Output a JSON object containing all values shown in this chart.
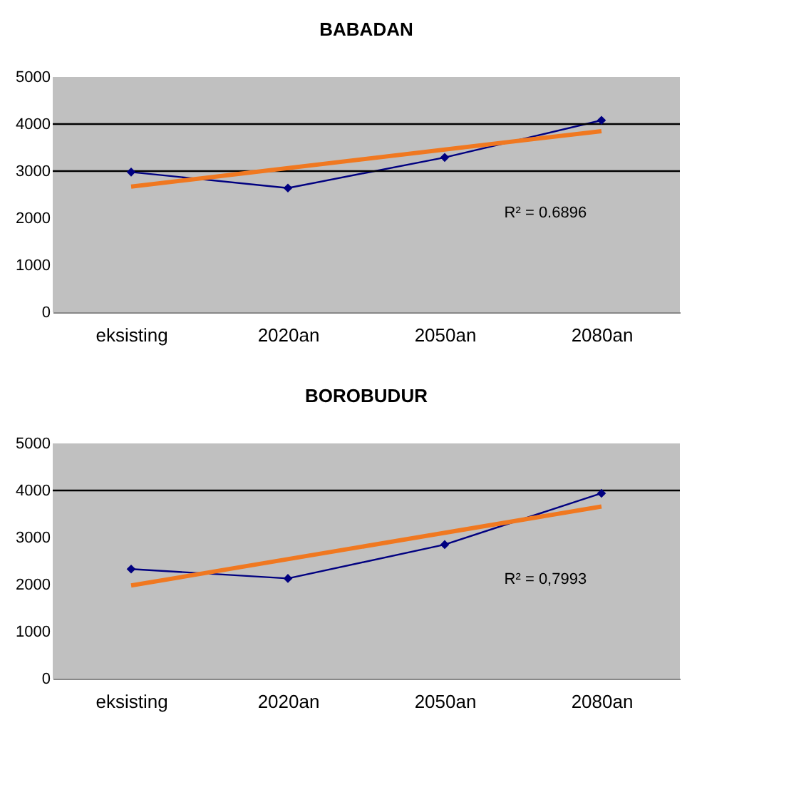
{
  "chart_data": [
    {
      "type": "line",
      "title": "BABADAN",
      "categories": [
        "eksisting",
        "2020an",
        "2050an",
        "2080an"
      ],
      "series": [
        {
          "color": "#000080",
          "values": [
            2980,
            2640,
            3290,
            4080
          ],
          "marker": "diamond"
        },
        {
          "type": "line",
          "color": "#f07820",
          "x": [
            "eksisting",
            "2080an"
          ],
          "values": [
            2670,
            3850
          ],
          "marker": "none"
        }
      ],
      "ylim": [
        0,
        5000
      ],
      "yticks": [
        0,
        1000,
        2000,
        3000,
        4000,
        5000
      ],
      "ref_lines": [
        {
          "axis": "y",
          "value": 3000,
          "color": "#000000"
        },
        {
          "axis": "y",
          "value": 4000,
          "color": "#000000"
        }
      ],
      "annotations": [
        "R² = 0.6896"
      ]
    },
    {
      "type": "line",
      "title": "BOROBUDUR",
      "categories": [
        "eksisting",
        "2020an",
        "2050an",
        "2080an"
      ],
      "series": [
        {
          "color": "#000080",
          "values": [
            2330,
            2130,
            2850,
            3940
          ],
          "marker": "diamond"
        },
        {
          "type": "line",
          "color": "#f07820",
          "x": [
            "eksisting",
            "2080an"
          ],
          "values": [
            1980,
            3660
          ],
          "marker": "none"
        }
      ],
      "ylim": [
        0,
        5000
      ],
      "yticks": [
        0,
        1000,
        2000,
        3000,
        4000,
        5000
      ],
      "ref_lines": [
        {
          "axis": "y",
          "value": 4000,
          "color": "#000000"
        }
      ],
      "annotations": [
        "R² = 0,7993"
      ]
    }
  ]
}
